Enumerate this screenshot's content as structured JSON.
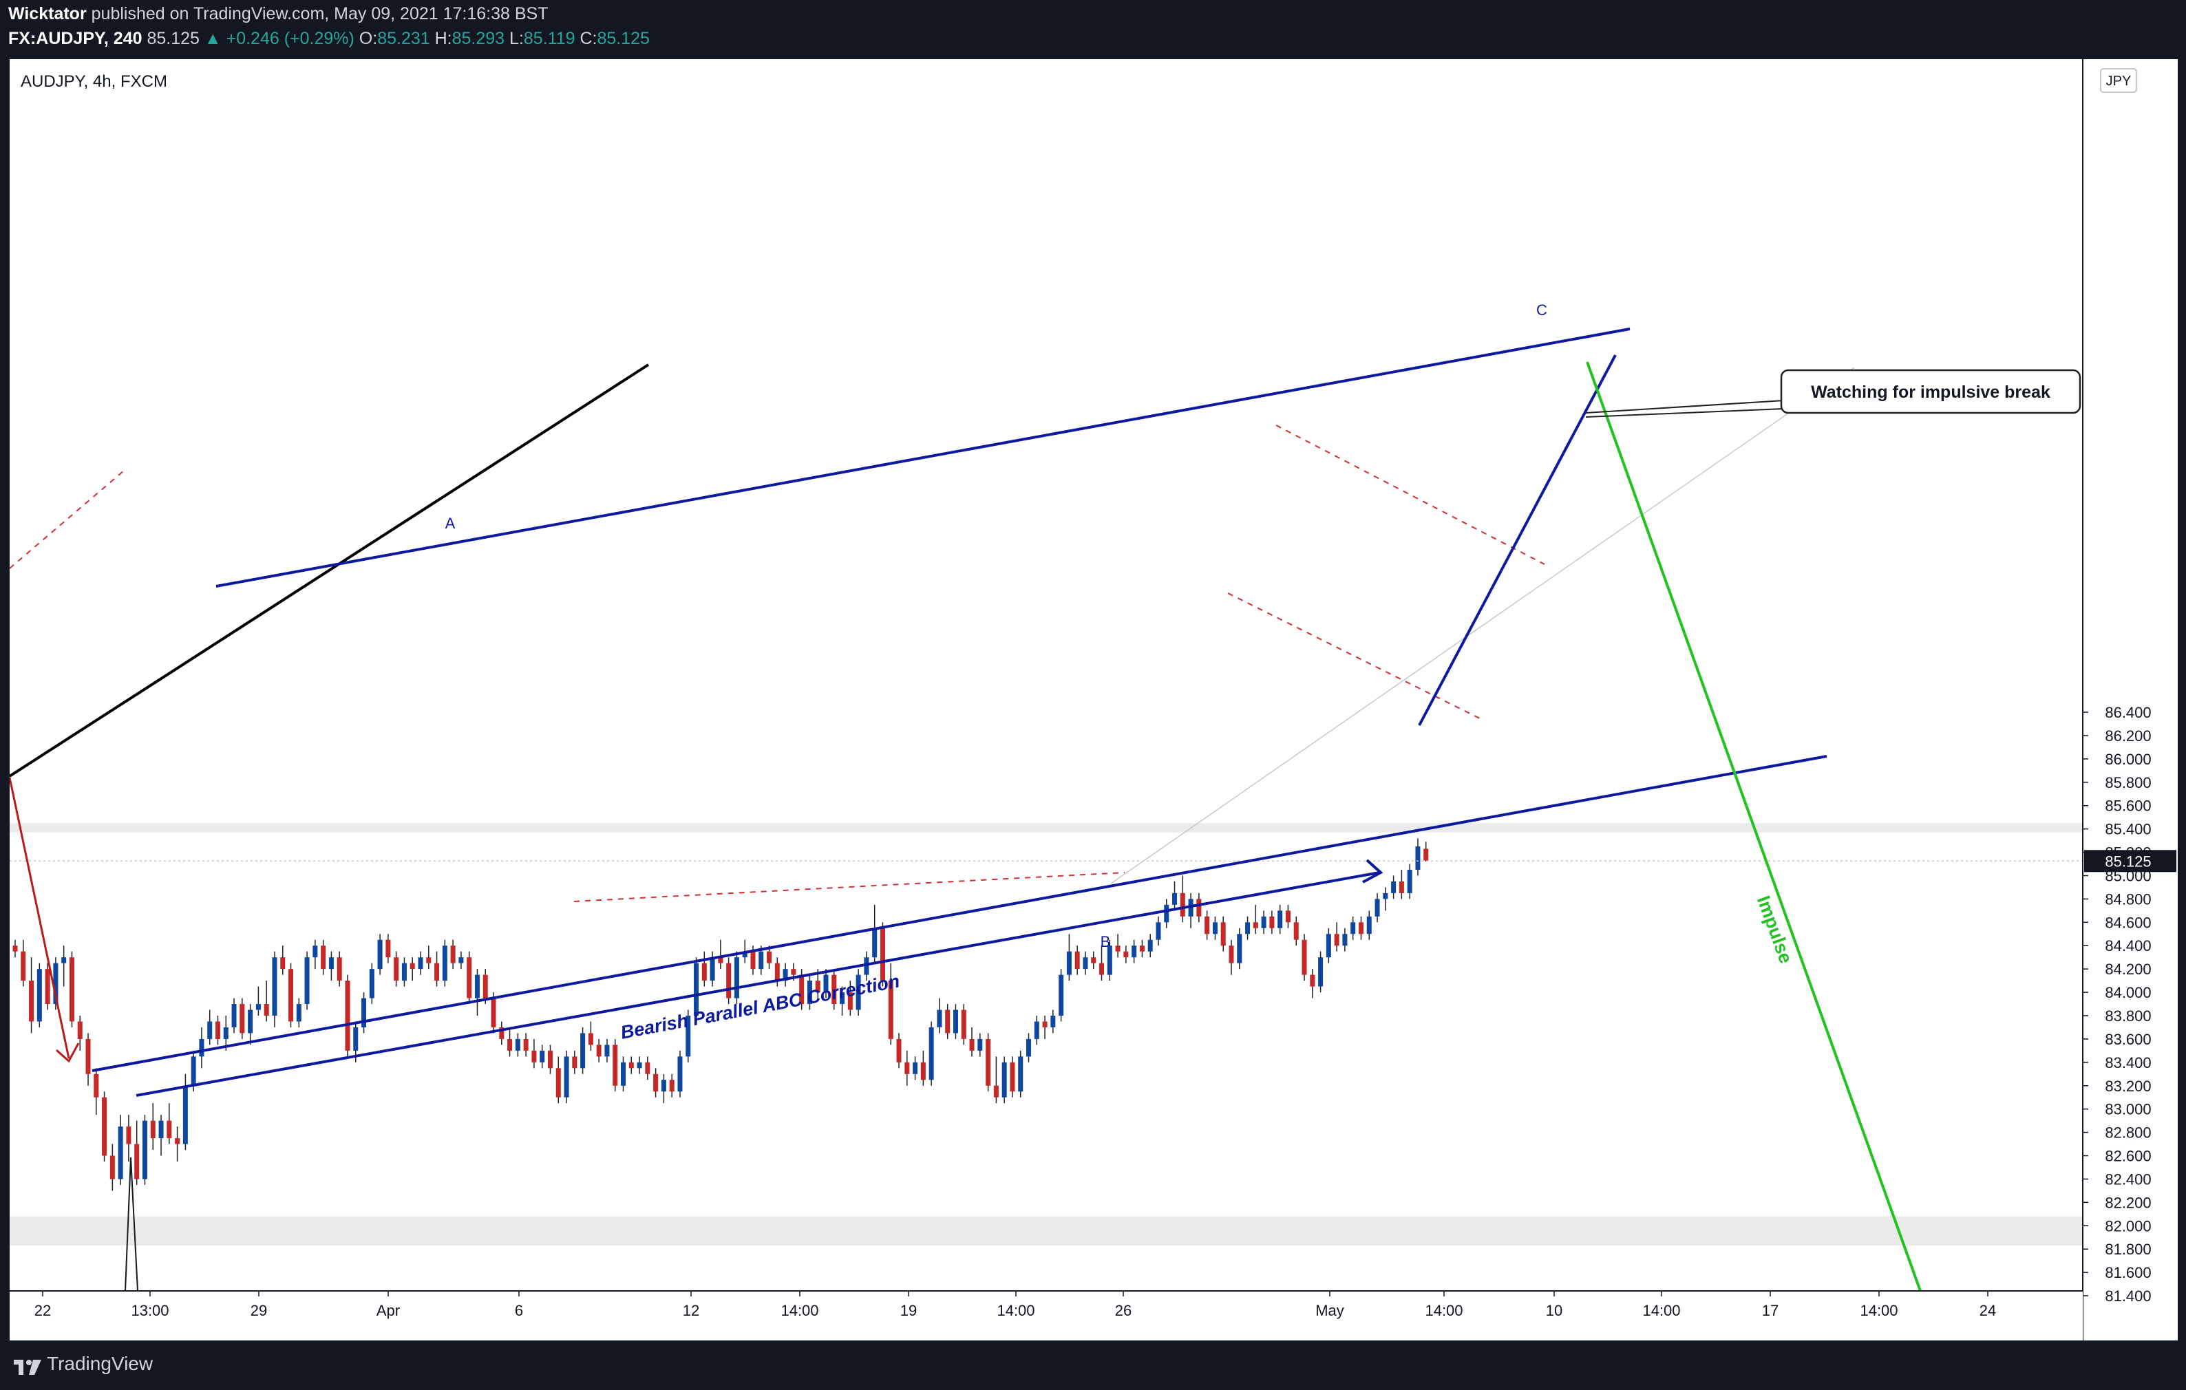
{
  "header": {
    "author": "Wicktator",
    "published_text": "published on TradingView.com, May 09, 2021 17:16:38 BST",
    "symbol": "FX:AUDJPY, 240",
    "last": "85.125",
    "change": "▲ +0.246 (+0.29%)",
    "o_label": "O:",
    "o": "85.231",
    "h_label": "H:",
    "h": "85.293",
    "l_label": "L:",
    "l": "85.119",
    "c_label": "C:",
    "c": "85.125"
  },
  "chart_data": {
    "type": "candlestick",
    "legend": "AUDJPY, 4h, FXCM",
    "currency": "JPY",
    "current_price_label": "85.125",
    "ylim": [
      81.3,
      86.55
    ],
    "y_ticks": [
      "86.400",
      "86.200",
      "86.000",
      "85.800",
      "85.600",
      "85.400",
      "85.200",
      "85.000",
      "84.800",
      "84.600",
      "84.400",
      "84.200",
      "84.000",
      "83.800",
      "83.600",
      "83.400",
      "83.200",
      "83.000",
      "82.800",
      "82.600",
      "82.400",
      "82.200",
      "82.000",
      "81.800",
      "81.600",
      "81.400"
    ],
    "x_ticks": [
      "22",
      "13:00",
      "29",
      "Apr",
      "6",
      "12",
      "14:00",
      "19",
      "14:00",
      "26",
      "May",
      "14:00",
      "10",
      "14:00",
      "17",
      "14:00",
      "24"
    ],
    "candles": [
      [
        84.4,
        84.45,
        84.3,
        84.35
      ],
      [
        84.35,
        84.45,
        84.05,
        84.1
      ],
      [
        84.1,
        84.3,
        83.65,
        83.75
      ],
      [
        83.75,
        84.25,
        83.7,
        84.2
      ],
      [
        84.2,
        84.25,
        83.85,
        83.9
      ],
      [
        83.9,
        84.3,
        83.85,
        84.25
      ],
      [
        84.25,
        84.4,
        84.05,
        84.3
      ],
      [
        84.3,
        84.35,
        83.7,
        83.75
      ],
      [
        83.75,
        83.8,
        83.5,
        83.6
      ],
      [
        83.6,
        83.65,
        83.2,
        83.3
      ],
      [
        83.3,
        83.35,
        82.95,
        83.1
      ],
      [
        83.1,
        83.15,
        82.55,
        82.6
      ],
      [
        82.6,
        82.7,
        82.3,
        82.4
      ],
      [
        82.4,
        82.95,
        82.35,
        82.85
      ],
      [
        82.85,
        82.95,
        82.55,
        82.7
      ],
      [
        82.7,
        82.9,
        82.35,
        82.4
      ],
      [
        82.4,
        82.95,
        82.35,
        82.9
      ],
      [
        82.9,
        83.05,
        82.65,
        82.75
      ],
      [
        82.75,
        82.95,
        82.6,
        82.9
      ],
      [
        82.9,
        83.05,
        82.7,
        82.75
      ],
      [
        82.75,
        82.85,
        82.55,
        82.7
      ],
      [
        82.7,
        83.3,
        82.65,
        83.2
      ],
      [
        83.2,
        83.5,
        83.15,
        83.45
      ],
      [
        83.45,
        83.7,
        83.35,
        83.6
      ],
      [
        83.6,
        83.85,
        83.55,
        83.75
      ],
      [
        83.75,
        83.8,
        83.55,
        83.6
      ],
      [
        83.6,
        83.8,
        83.5,
        83.7
      ],
      [
        83.7,
        83.95,
        83.65,
        83.9
      ],
      [
        83.9,
        83.95,
        83.6,
        83.65
      ],
      [
        83.65,
        83.9,
        83.55,
        83.85
      ],
      [
        83.85,
        84.05,
        83.8,
        83.9
      ],
      [
        83.9,
        84.1,
        83.75,
        83.8
      ],
      [
        83.8,
        84.35,
        83.7,
        84.3
      ],
      [
        84.3,
        84.4,
        84.15,
        84.2
      ],
      [
        84.2,
        84.25,
        83.7,
        83.75
      ],
      [
        83.75,
        83.95,
        83.7,
        83.9
      ],
      [
        83.9,
        84.35,
        83.85,
        84.3
      ],
      [
        84.3,
        84.45,
        84.2,
        84.4
      ],
      [
        84.4,
        84.45,
        84.15,
        84.2
      ],
      [
        84.2,
        84.35,
        84.1,
        84.3
      ],
      [
        84.3,
        84.35,
        84.05,
        84.1
      ],
      [
        84.1,
        84.15,
        83.45,
        83.5
      ],
      [
        83.5,
        83.75,
        83.4,
        83.7
      ],
      [
        83.7,
        84.0,
        83.65,
        83.95
      ],
      [
        83.95,
        84.25,
        83.9,
        84.2
      ],
      [
        84.2,
        84.5,
        84.15,
        84.45
      ],
      [
        84.45,
        84.5,
        84.25,
        84.3
      ],
      [
        84.3,
        84.35,
        84.05,
        84.1
      ],
      [
        84.1,
        84.3,
        84.05,
        84.25
      ],
      [
        84.25,
        84.3,
        84.1,
        84.2
      ],
      [
        84.2,
        84.35,
        84.15,
        84.3
      ],
      [
        84.3,
        84.4,
        84.2,
        84.25
      ],
      [
        84.25,
        84.35,
        84.05,
        84.1
      ],
      [
        84.1,
        84.45,
        84.05,
        84.4
      ],
      [
        84.4,
        84.45,
        84.2,
        84.25
      ],
      [
        84.25,
        84.35,
        84.2,
        84.3
      ],
      [
        84.3,
        84.35,
        83.9,
        83.95
      ],
      [
        83.95,
        84.2,
        83.8,
        84.15
      ],
      [
        84.15,
        84.2,
        83.9,
        83.95
      ],
      [
        83.95,
        84.0,
        83.65,
        83.7
      ],
      [
        83.7,
        83.75,
        83.55,
        83.6
      ],
      [
        83.6,
        83.7,
        83.45,
        83.5
      ],
      [
        83.5,
        83.65,
        83.45,
        83.6
      ],
      [
        83.6,
        83.65,
        83.45,
        83.5
      ],
      [
        83.5,
        83.6,
        83.35,
        83.4
      ],
      [
        83.4,
        83.55,
        83.35,
        83.5
      ],
      [
        83.5,
        83.55,
        83.3,
        83.35
      ],
      [
        83.35,
        83.45,
        83.05,
        83.1
      ],
      [
        83.1,
        83.5,
        83.05,
        83.45
      ],
      [
        83.45,
        83.5,
        83.3,
        83.35
      ],
      [
        83.35,
        83.7,
        83.3,
        83.65
      ],
      [
        83.65,
        83.75,
        83.5,
        83.55
      ],
      [
        83.55,
        83.6,
        83.4,
        83.45
      ],
      [
        83.45,
        83.6,
        83.4,
        83.55
      ],
      [
        83.55,
        83.6,
        83.15,
        83.2
      ],
      [
        83.2,
        83.45,
        83.15,
        83.4
      ],
      [
        83.4,
        83.45,
        83.3,
        83.35
      ],
      [
        83.35,
        83.45,
        83.3,
        83.4
      ],
      [
        83.4,
        83.45,
        83.25,
        83.3
      ],
      [
        83.3,
        83.35,
        83.1,
        83.15
      ],
      [
        83.15,
        83.3,
        83.05,
        83.25
      ],
      [
        83.25,
        83.3,
        83.1,
        83.15
      ],
      [
        83.15,
        83.5,
        83.1,
        83.45
      ],
      [
        83.45,
        83.85,
        83.4,
        83.8
      ],
      [
        83.8,
        84.3,
        83.75,
        84.25
      ],
      [
        84.25,
        84.35,
        84.05,
        84.1
      ],
      [
        84.1,
        84.35,
        84.05,
        84.3
      ],
      [
        84.3,
        84.45,
        84.2,
        84.25
      ],
      [
        84.25,
        84.3,
        83.9,
        83.95
      ],
      [
        83.95,
        84.35,
        83.9,
        84.3
      ],
      [
        84.3,
        84.45,
        84.25,
        84.35
      ],
      [
        84.35,
        84.4,
        84.15,
        84.2
      ],
      [
        84.2,
        84.4,
        84.15,
        84.35
      ],
      [
        84.35,
        84.4,
        84.2,
        84.25
      ],
      [
        84.25,
        84.3,
        84.05,
        84.1
      ],
      [
        84.1,
        84.25,
        84.05,
        84.2
      ],
      [
        84.2,
        84.25,
        84.1,
        84.15
      ],
      [
        84.15,
        84.2,
        83.85,
        83.9
      ],
      [
        83.9,
        84.15,
        83.85,
        84.1
      ],
      [
        84.1,
        84.2,
        83.95,
        84.0
      ],
      [
        84.0,
        84.2,
        83.95,
        84.15
      ],
      [
        84.15,
        84.2,
        83.85,
        83.9
      ],
      [
        83.9,
        84.05,
        83.8,
        84.0
      ],
      [
        84.0,
        84.1,
        83.8,
        83.85
      ],
      [
        83.85,
        84.2,
        83.8,
        84.15
      ],
      [
        84.15,
        84.35,
        84.1,
        84.3
      ],
      [
        84.3,
        84.75,
        84.25,
        84.55
      ],
      [
        84.55,
        84.6,
        84.05,
        84.1
      ],
      [
        84.1,
        84.25,
        83.55,
        83.6
      ],
      [
        83.6,
        83.65,
        83.35,
        83.4
      ],
      [
        83.4,
        83.5,
        83.2,
        83.3
      ],
      [
        83.3,
        83.45,
        83.25,
        83.4
      ],
      [
        83.4,
        83.5,
        83.2,
        83.25
      ],
      [
        83.25,
        83.75,
        83.2,
        83.7
      ],
      [
        83.7,
        83.95,
        83.65,
        83.85
      ],
      [
        83.85,
        83.9,
        83.6,
        83.65
      ],
      [
        83.65,
        83.9,
        83.6,
        83.85
      ],
      [
        83.85,
        83.9,
        83.55,
        83.6
      ],
      [
        83.6,
        83.7,
        83.45,
        83.5
      ],
      [
        83.5,
        83.65,
        83.45,
        83.6
      ],
      [
        83.6,
        83.65,
        83.15,
        83.2
      ],
      [
        83.2,
        83.45,
        83.05,
        83.1
      ],
      [
        83.1,
        83.45,
        83.05,
        83.4
      ],
      [
        83.4,
        83.45,
        83.1,
        83.15
      ],
      [
        83.15,
        83.5,
        83.1,
        83.45
      ],
      [
        83.45,
        83.65,
        83.4,
        83.6
      ],
      [
        83.6,
        83.8,
        83.55,
        83.75
      ],
      [
        83.75,
        83.8,
        83.6,
        83.7
      ],
      [
        83.7,
        83.85,
        83.65,
        83.8
      ],
      [
        83.8,
        84.2,
        83.75,
        84.15
      ],
      [
        84.15,
        84.5,
        84.1,
        84.35
      ],
      [
        84.35,
        84.4,
        84.15,
        84.2
      ],
      [
        84.2,
        84.35,
        84.15,
        84.3
      ],
      [
        84.3,
        84.35,
        84.2,
        84.25
      ],
      [
        84.25,
        84.4,
        84.1,
        84.15
      ],
      [
        84.15,
        84.45,
        84.1,
        84.4
      ],
      [
        84.4,
        84.5,
        84.3,
        84.35
      ],
      [
        84.35,
        84.4,
        84.25,
        84.3
      ],
      [
        84.3,
        84.45,
        84.25,
        84.4
      ],
      [
        84.4,
        84.45,
        84.3,
        84.35
      ],
      [
        84.35,
        84.5,
        84.3,
        84.45
      ],
      [
        84.45,
        84.65,
        84.4,
        84.6
      ],
      [
        84.6,
        84.8,
        84.55,
        84.75
      ],
      [
        84.75,
        84.95,
        84.7,
        84.85
      ],
      [
        84.85,
        85.0,
        84.6,
        84.65
      ],
      [
        84.65,
        84.85,
        84.55,
        84.8
      ],
      [
        84.8,
        84.85,
        84.6,
        84.65
      ],
      [
        84.65,
        84.7,
        84.45,
        84.5
      ],
      [
        84.5,
        84.65,
        84.45,
        84.6
      ],
      [
        84.6,
        84.65,
        84.35,
        84.4
      ],
      [
        84.4,
        84.45,
        84.15,
        84.25
      ],
      [
        84.25,
        84.55,
        84.2,
        84.5
      ],
      [
        84.5,
        84.65,
        84.45,
        84.6
      ],
      [
        84.6,
        84.75,
        84.5,
        84.55
      ],
      [
        84.55,
        84.7,
        84.5,
        84.65
      ],
      [
        84.65,
        84.7,
        84.5,
        84.55
      ],
      [
        84.55,
        84.75,
        84.5,
        84.7
      ],
      [
        84.7,
        84.75,
        84.55,
        84.6
      ],
      [
        84.6,
        84.65,
        84.4,
        84.45
      ],
      [
        84.45,
        84.5,
        84.1,
        84.15
      ],
      [
        84.15,
        84.2,
        83.95,
        84.05
      ],
      [
        84.05,
        84.35,
        84.0,
        84.3
      ],
      [
        84.3,
        84.55,
        84.25,
        84.5
      ],
      [
        84.5,
        84.6,
        84.35,
        84.4
      ],
      [
        84.4,
        84.55,
        84.35,
        84.5
      ],
      [
        84.5,
        84.65,
        84.45,
        84.6
      ],
      [
        84.6,
        84.65,
        84.45,
        84.5
      ],
      [
        84.5,
        84.7,
        84.45,
        84.65
      ],
      [
        84.65,
        84.85,
        84.6,
        84.8
      ],
      [
        84.8,
        84.9,
        84.7,
        84.85
      ],
      [
        84.85,
        85.0,
        84.8,
        84.95
      ],
      [
        84.95,
        85.05,
        84.8,
        84.85
      ],
      [
        84.85,
        85.1,
        84.8,
        85.05
      ],
      [
        85.05,
        85.32,
        85.0,
        85.25
      ],
      [
        85.23,
        85.29,
        85.12,
        85.13
      ]
    ],
    "annotations": {
      "A": "A",
      "B": "B",
      "C": "C",
      "pattern_label": "Bearish Parallel ABC Correction",
      "callout": "Watching for impulsive break",
      "impulse_label": "Impulse"
    },
    "colors": {
      "up": "#0d47a1",
      "down": "#c62828",
      "channel": "#0d1a9e",
      "impulse": "#22c222",
      "trend_black": "#000000",
      "red_dash": "#d32f2f",
      "red_arrow": "#b71c1c",
      "zone": "#ebebeb"
    }
  },
  "footer": {
    "brand": "TradingView"
  }
}
